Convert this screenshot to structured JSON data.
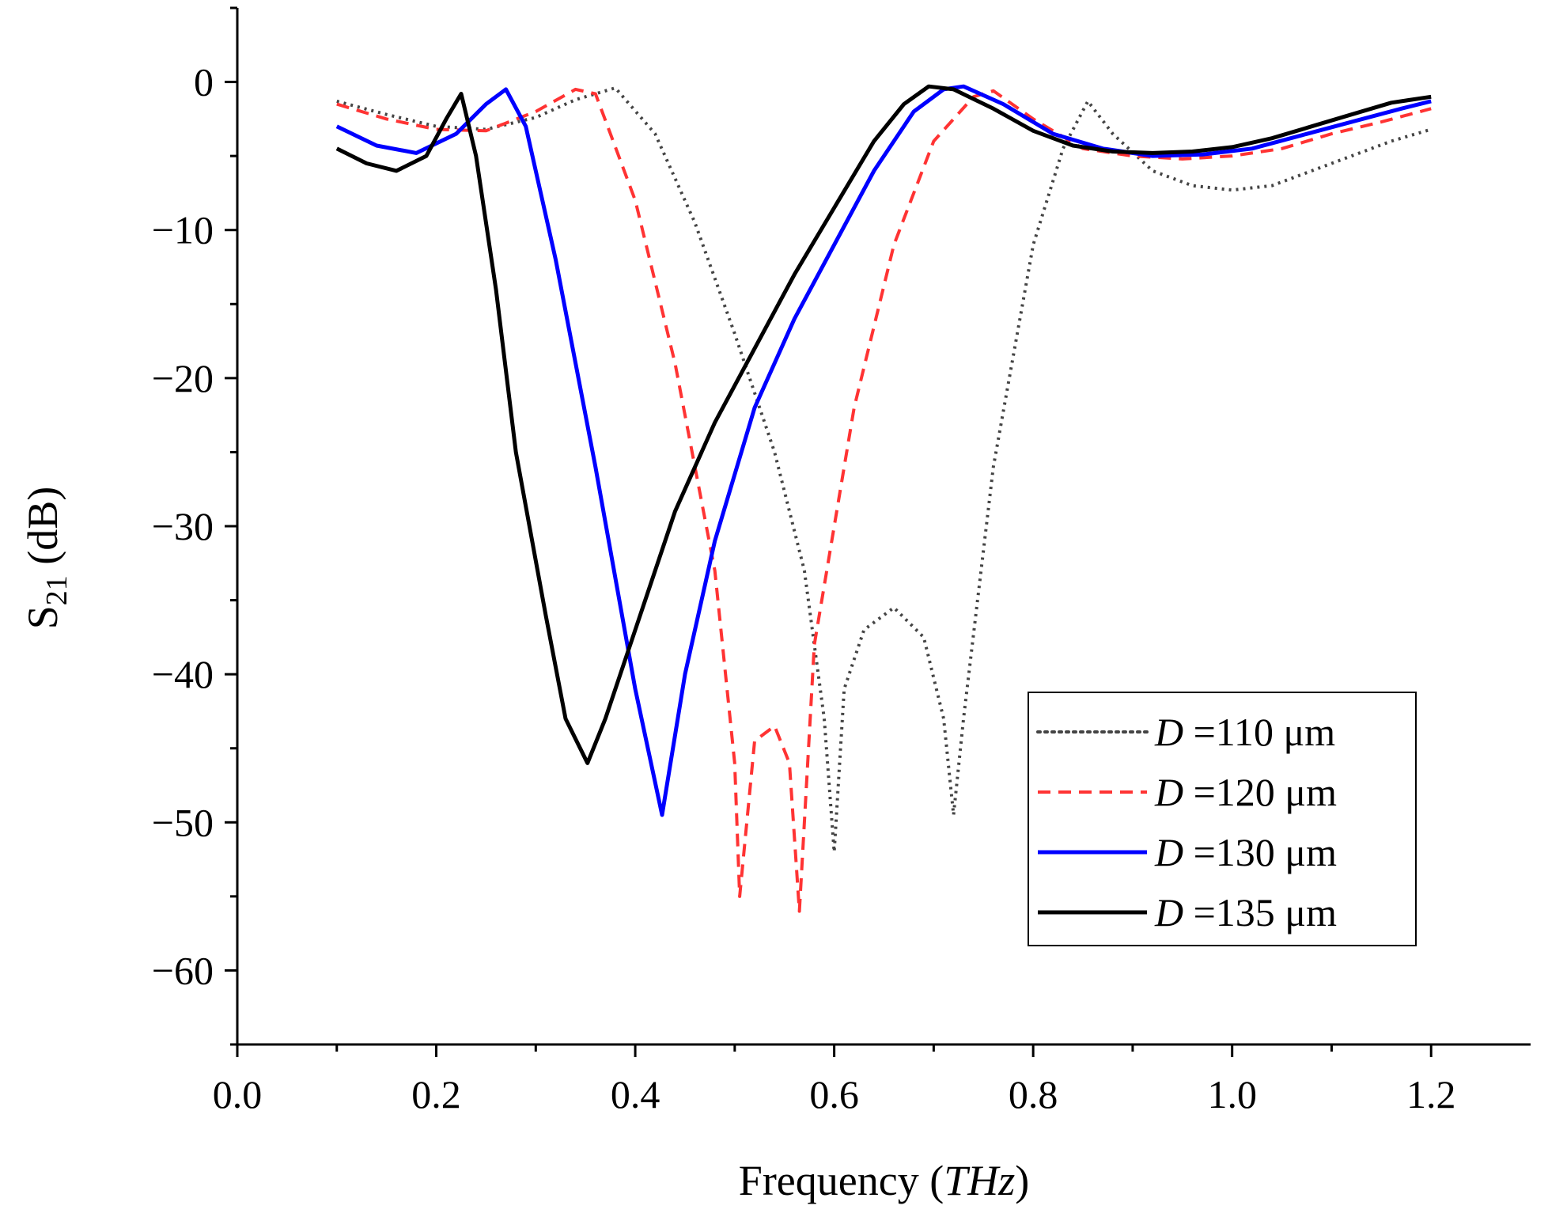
{
  "chart_data": {
    "type": "line",
    "xlabel": "Frequency",
    "xlabel_unit": "THz",
    "ylabel_main": "S",
    "ylabel_sub": "21",
    "ylabel_unit": " (dB)",
    "xlim": [
      0.0,
      1.3
    ],
    "ylim": [
      -65,
      5
    ],
    "xticks": [
      0.0,
      0.2,
      0.4,
      0.6,
      0.8,
      1.0,
      1.2
    ],
    "xtick_labels": [
      "0.0",
      "0.2",
      "0.4",
      "0.6",
      "0.8",
      "1.0",
      "1.2"
    ],
    "yticks": [
      0,
      -10,
      -20,
      -30,
      -40,
      -50,
      -60
    ],
    "ytick_labels": [
      "0",
      "−10",
      "−20",
      "−30",
      "−40",
      "−50",
      "−60"
    ],
    "grid": false,
    "legend_position": "lower-right",
    "series": [
      {
        "name": "D =110 μm",
        "legend_var": "D",
        "legend_value": " =110 μm",
        "color": "#444444",
        "style": "dotted",
        "x": [
          0.1,
          0.15,
          0.2,
          0.25,
          0.3,
          0.34,
          0.38,
          0.42,
          0.46,
          0.5,
          0.54,
          0.57,
          0.59,
          0.6,
          0.61,
          0.63,
          0.66,
          0.69,
          0.71,
          0.72,
          0.73,
          0.76,
          0.8,
          0.83,
          0.855,
          0.88,
          0.92,
          0.96,
          1.0,
          1.04,
          1.08,
          1.12,
          1.16,
          1.2
        ],
        "y": [
          -1.3,
          -2.2,
          -3.0,
          -3.2,
          -2.4,
          -1.2,
          -0.4,
          -3.5,
          -9.5,
          -17.0,
          -25.0,
          -33.0,
          -43.0,
          -52.0,
          -41.0,
          -37.0,
          -35.5,
          -37.5,
          -43.0,
          -49.5,
          -43.0,
          -26.0,
          -11.0,
          -4.5,
          -1.3,
          -3.5,
          -6.0,
          -7.0,
          -7.3,
          -7.0,
          -6.0,
          -5.0,
          -4.0,
          -3.2
        ]
      },
      {
        "name": "D =120 μm",
        "legend_var": "D",
        "legend_value": " =120 μm",
        "color": "#ff3333",
        "style": "dashed",
        "x": [
          0.1,
          0.15,
          0.2,
          0.25,
          0.3,
          0.34,
          0.36,
          0.4,
          0.44,
          0.48,
          0.5,
          0.505,
          0.52,
          0.54,
          0.555,
          0.565,
          0.58,
          0.62,
          0.66,
          0.7,
          0.74,
          0.76,
          0.8,
          0.85,
          0.9,
          0.95,
          1.0,
          1.05,
          1.1,
          1.15,
          1.2
        ],
        "y": [
          -1.5,
          -2.5,
          -3.2,
          -3.3,
          -2.0,
          -0.5,
          -0.8,
          -8.0,
          -19.0,
          -33.0,
          -46.0,
          -55.0,
          -44.5,
          -43.5,
          -46.0,
          -56.0,
          -38.0,
          -22.0,
          -11.0,
          -4.0,
          -1.0,
          -0.6,
          -2.5,
          -4.5,
          -5.0,
          -5.2,
          -5.0,
          -4.5,
          -3.5,
          -2.7,
          -1.8
        ]
      },
      {
        "name": "D =130 μm",
        "legend_var": "D",
        "legend_value": " =130 μm",
        "color": "#0000ff",
        "style": "solid",
        "x": [
          0.1,
          0.14,
          0.18,
          0.22,
          0.25,
          0.27,
          0.29,
          0.32,
          0.36,
          0.4,
          0.427,
          0.45,
          0.48,
          0.52,
          0.56,
          0.6,
          0.64,
          0.68,
          0.71,
          0.73,
          0.77,
          0.82,
          0.87,
          0.92,
          0.97,
          1.02,
          1.07,
          1.12,
          1.17,
          1.2
        ],
        "y": [
          -3.0,
          -4.3,
          -4.8,
          -3.5,
          -1.5,
          -0.5,
          -3.0,
          -12.0,
          -26.0,
          -41.0,
          -49.5,
          -40.0,
          -31.0,
          -22.0,
          -16.0,
          -11.0,
          -6.0,
          -2.0,
          -0.5,
          -0.3,
          -1.5,
          -3.5,
          -4.5,
          -5.0,
          -4.9,
          -4.5,
          -3.6,
          -2.7,
          -1.8,
          -1.3
        ]
      },
      {
        "name": "D =135 μm",
        "legend_var": "D",
        "legend_value": " =135 μm",
        "color": "#000000",
        "style": "solid",
        "x": [
          0.1,
          0.13,
          0.16,
          0.19,
          0.21,
          0.225,
          0.24,
          0.26,
          0.28,
          0.31,
          0.33,
          0.352,
          0.37,
          0.4,
          0.44,
          0.48,
          0.52,
          0.56,
          0.6,
          0.64,
          0.67,
          0.695,
          0.72,
          0.76,
          0.8,
          0.84,
          0.88,
          0.92,
          0.96,
          1.0,
          1.04,
          1.08,
          1.12,
          1.16,
          1.2
        ],
        "y": [
          -4.5,
          -5.5,
          -6.0,
          -5.0,
          -2.5,
          -0.8,
          -5.0,
          -14.0,
          -25.0,
          -36.0,
          -43.0,
          -46.0,
          -43.0,
          -37.0,
          -29.0,
          -23.0,
          -18.0,
          -13.0,
          -8.5,
          -4.0,
          -1.5,
          -0.3,
          -0.5,
          -1.8,
          -3.3,
          -4.3,
          -4.7,
          -4.8,
          -4.7,
          -4.4,
          -3.8,
          -3.0,
          -2.2,
          -1.4,
          -1.0
        ]
      }
    ]
  }
}
